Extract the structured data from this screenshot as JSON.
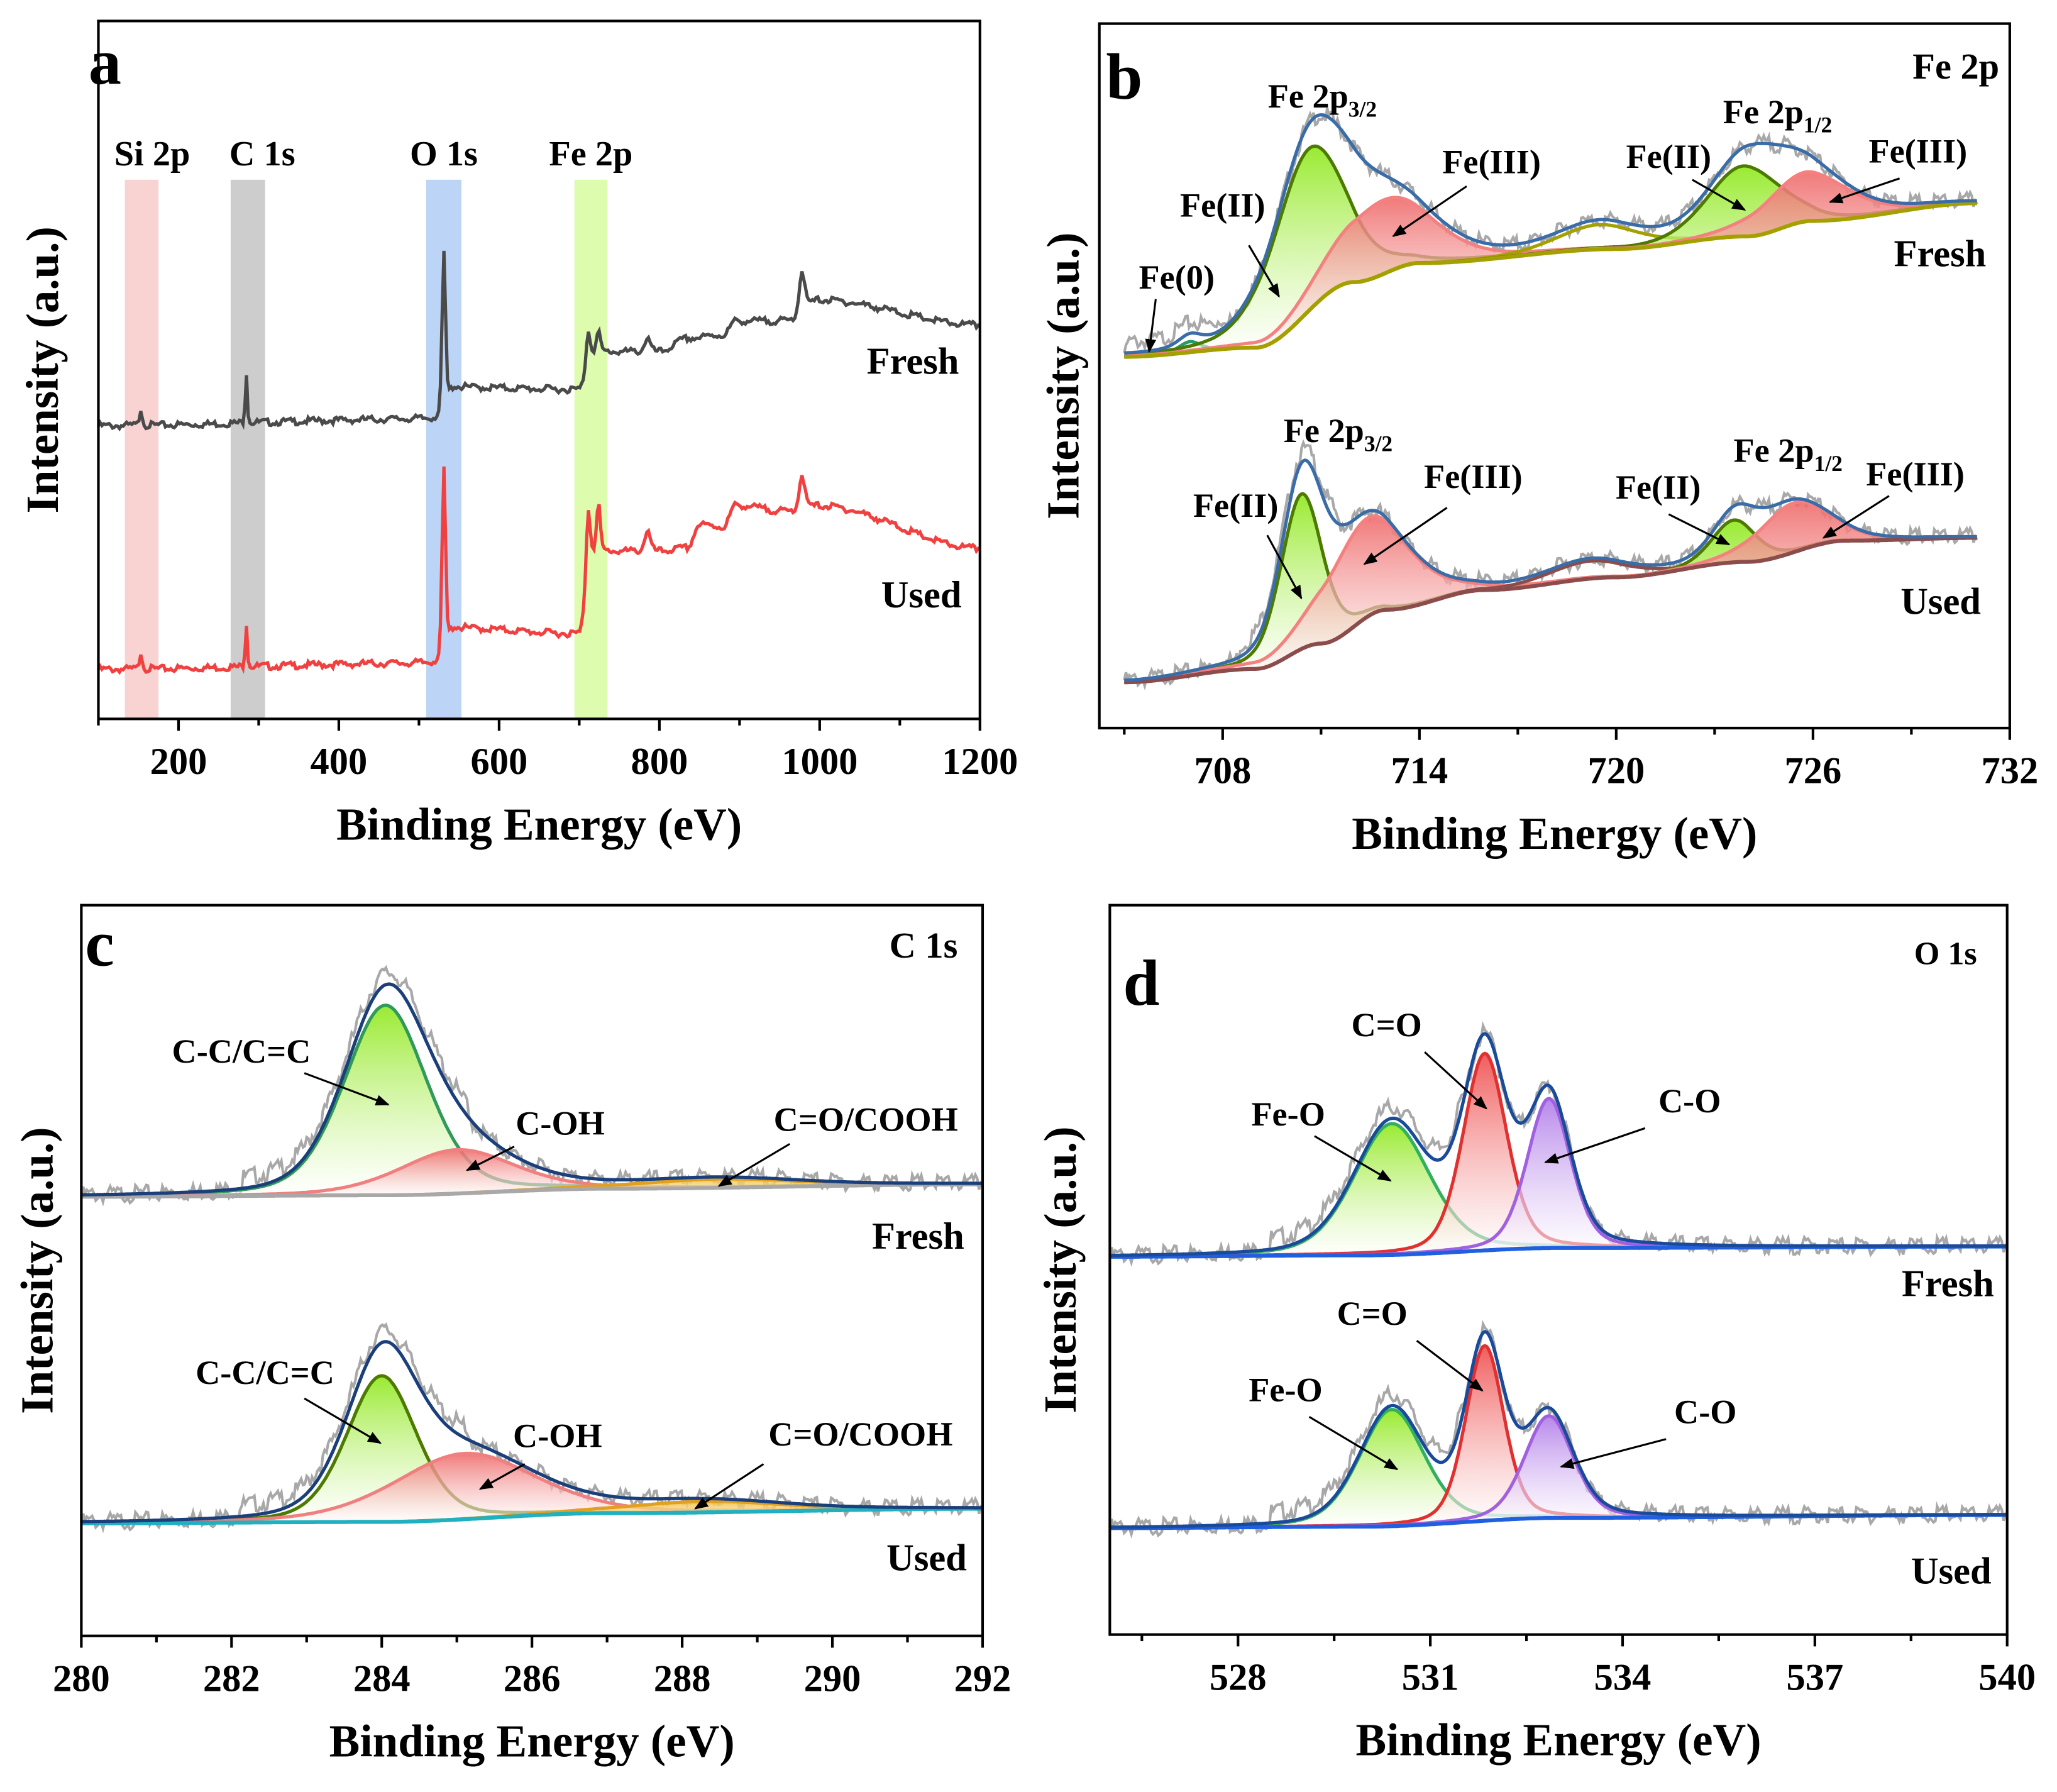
{
  "chart_data": [
    {
      "panel": "a",
      "type": "line",
      "xlabel": "Binding Energy (eV)",
      "ylabel": "Intensity (a.u.)",
      "xlim": [
        100,
        1200
      ],
      "ylim": [
        0,
        100
      ],
      "xticks": [
        200,
        400,
        600,
        800,
        1000,
        1200
      ],
      "grid": false,
      "bands": [
        {
          "label": "Si 2p",
          "range": [
            133,
            175
          ],
          "color": "#f8caca"
        },
        {
          "label": "C 1s",
          "range": [
            265,
            308
          ],
          "color": "#c4c4c4"
        },
        {
          "label": "O 1s",
          "range": [
            509,
            553
          ],
          "color": "#b0cdf3"
        },
        {
          "label": "Fe 2p",
          "range": [
            694,
            735
          ],
          "color": "#d8fca0"
        }
      ],
      "spectra": [
        {
          "name": "Fresh",
          "color": "#4a4a4a",
          "background": [
            [
              100,
              42
            ],
            [
              525,
              43
            ],
            [
              545,
              47.5
            ],
            [
              700,
              47.2
            ],
            [
              715,
              52.6
            ],
            [
              800,
              52.6
            ],
            [
              835,
              54.5
            ],
            [
              880,
              55
            ],
            [
              895,
              57
            ],
            [
              960,
              57
            ],
            [
              1000,
              60
            ],
            [
              1200,
              56.4
            ]
          ],
          "peaks": [
            [
              153,
              4,
              2.5
            ],
            [
              284.5,
              3,
              7.5
            ],
            [
              531,
              5,
              23
            ],
            [
              711,
              5,
              4
            ],
            [
              724,
              5,
              3
            ],
            [
              785,
              8,
              2
            ],
            [
              978,
              8,
              6
            ]
          ]
        },
        {
          "name": "Used",
          "color": "#f04040",
          "background": [
            [
              100,
              7.1
            ],
            [
              525,
              8
            ],
            [
              545,
              13
            ],
            [
              700,
              12.2
            ],
            [
              715,
              24
            ],
            [
              800,
              24
            ],
            [
              835,
              24.5
            ],
            [
              850,
              27.8
            ],
            [
              880,
              27.5
            ],
            [
              895,
              30.6
            ],
            [
              960,
              29.7
            ],
            [
              1000,
              30.5
            ],
            [
              1200,
              24.4
            ]
          ],
          "peaks": [
            [
              153,
              4,
              2.5
            ],
            [
              284.5,
              3,
              6.5
            ],
            [
              531,
              5,
              27
            ],
            [
              711,
              5,
              8
            ],
            [
              724,
              5,
              7
            ],
            [
              785,
              8,
              3
            ],
            [
              978,
              8,
              5
            ]
          ]
        }
      ]
    },
    {
      "panel": "b",
      "type": "line",
      "title": "Fe 2p",
      "xlabel": "Binding Energy (eV)",
      "ylabel": "Intensity (a.u.)",
      "xlim": [
        704.24,
        732
      ],
      "ylim": [
        0,
        100
      ],
      "xticks": [
        708,
        714,
        720,
        726,
        732
      ],
      "grid": false,
      "spectra": [
        {
          "name": "Fresh",
          "envelope_color": "#3a6ca8",
          "background_color": "#a3a000",
          "background": [
            [
              705,
              52.7
            ],
            [
              709,
              54
            ],
            [
              712,
              63.3
            ],
            [
              714,
              66
            ],
            [
              720,
              68
            ],
            [
              724,
              69.8
            ],
            [
              726,
              72
            ],
            [
              731,
              74.5
            ]
          ],
          "groups": [
            {
              "main": "Fe 2p",
              "sub": "3/2"
            },
            {
              "main": "Fe 2p",
              "sub": "1/2"
            }
          ],
          "components": [
            {
              "label": "Fe(0)",
              "center": 707.0,
              "fwhm": 0.8,
              "amp": 1.5,
              "color": "#3fbf8f",
              "line": "#2a9a6a"
            },
            {
              "label": "Fe(II)",
              "center": 710.6,
              "fwhm": 2.6,
              "amp": 23,
              "color": "#8ee81a",
              "line": "#4d7a00"
            },
            {
              "label": "Fe(III)",
              "center": 712.9,
              "fwhm": 3.5,
              "amp": 10.5,
              "color": "#ef6b6b",
              "line": "#f48080"
            },
            {
              "label": "",
              "center": 719.5,
              "fwhm": 3.0,
              "amp": 3.5,
              "color": "#b5b000",
              "line": "#a3a000"
            },
            {
              "label": "Fe(II)",
              "center": 723.9,
              "fwhm": 2.6,
              "amp": 10,
              "color": "#8ee81a",
              "line": "#4d7a00"
            },
            {
              "label": "Fe(III)",
              "center": 725.8,
              "fwhm": 3.0,
              "amp": 7,
              "color": "#ef6b6b",
              "line": "#f48080"
            }
          ]
        },
        {
          "name": "Used",
          "envelope_color": "#3a6ca8",
          "background_color": "#8b4c4c",
          "background": [
            [
              705,
              6.5
            ],
            [
              709,
              8.4
            ],
            [
              711,
              12
            ],
            [
              713,
              16.8
            ],
            [
              716,
              19.6
            ],
            [
              720,
              21.4
            ],
            [
              724,
              23.6
            ],
            [
              727,
              26.6
            ],
            [
              731,
              27
            ]
          ],
          "groups": [
            {
              "main": "Fe 2p",
              "sub": "3/2"
            },
            {
              "main": "Fe 2p",
              "sub": "1/2"
            }
          ],
          "components": [
            {
              "label": "Fe(II)",
              "center": 710.4,
              "fwhm": 1.5,
              "amp": 22,
              "color": "#8ee81a",
              "line": "#4d7a00"
            },
            {
              "label": "Fe(III)",
              "center": 712.4,
              "fwhm": 3.0,
              "amp": 14,
              "color": "#ef6b6b",
              "line": "#f48080"
            },
            {
              "label": "",
              "center": 719.2,
              "fwhm": 3.0,
              "amp": 2.5,
              "color": "#9a5a5a",
              "line": "#8b4c4c"
            },
            {
              "label": "Fe(II)",
              "center": 723.6,
              "fwhm": 1.6,
              "amp": 6,
              "color": "#8ee81a",
              "line": "#4d7a00"
            },
            {
              "label": "Fe(III)",
              "center": 725.4,
              "fwhm": 2.5,
              "amp": 7,
              "color": "#ef6b6b",
              "line": "#f48080"
            }
          ]
        }
      ]
    },
    {
      "panel": "c",
      "type": "line",
      "title": "C 1s",
      "xlabel": "Binding Energy (eV)",
      "ylabel": "Intensity (a.u.)",
      "xlim": [
        280,
        292
      ],
      "ylim": [
        0,
        100
      ],
      "xticks": [
        280,
        282,
        284,
        286,
        288,
        290,
        292
      ],
      "grid": false,
      "spectra": [
        {
          "name": "Fresh",
          "envelope_color": "#1a3f7a",
          "background_color": "#a8a8a8",
          "background": [
            [
              280,
              60.1
            ],
            [
              284,
              60.3
            ],
            [
              287,
              61.2
            ],
            [
              292,
              61.8
            ]
          ],
          "components": [
            {
              "label": "C-C/C=C",
              "center": 284.05,
              "fwhm": 1.3,
              "amp": 26,
              "color": "#8ee81a",
              "line": "#2f9a5a"
            },
            {
              "label": "C-OH",
              "center": 285.0,
              "fwhm": 1.8,
              "amp": 6,
              "color": "#ef6b6b",
              "line": "#f08080"
            },
            {
              "label": "C=O/COOH",
              "center": 288.5,
              "fwhm": 2.5,
              "amp": 1.2,
              "color": "#f0c040",
              "line": "#e0a020"
            }
          ]
        },
        {
          "name": "Used",
          "envelope_color": "#1a3f7a",
          "background_color": "#20b0c0",
          "background": [
            [
              280,
              15.4
            ],
            [
              284,
              15.6
            ],
            [
              287,
              16.8
            ],
            [
              292,
              17.4
            ]
          ],
          "components": [
            {
              "label": "C-C/C=C",
              "center": 284.0,
              "fwhm": 1.1,
              "amp": 20,
              "color": "#8ee81a",
              "line": "#4d7a00"
            },
            {
              "label": "C-OH",
              "center": 285.1,
              "fwhm": 2.2,
              "amp": 9,
              "color": "#ef6b6b",
              "line": "#f08080"
            },
            {
              "label": "C=O/COOH",
              "center": 288.3,
              "fwhm": 2.5,
              "amp": 1.5,
              "color": "#f0c040",
              "line": "#e0a020"
            }
          ]
        }
      ]
    },
    {
      "panel": "d",
      "type": "line",
      "title": "O 1s",
      "xlabel": "Binding Energy (eV)",
      "ylabel": "Intensity (a.u.)",
      "xlim": [
        526,
        540
      ],
      "ylim": [
        0,
        100
      ],
      "xticks": [
        528,
        531,
        534,
        537,
        540
      ],
      "grid": false,
      "spectra": [
        {
          "name": "Fresh",
          "envelope_color": "#1a4a9a",
          "background_color": "#2060e0",
          "background": [
            [
              526,
              51.8
            ],
            [
              530,
              52
            ],
            [
              533,
              53
            ],
            [
              540,
              53.2
            ]
          ],
          "components": [
            {
              "label": "Fe-O",
              "center": 530.4,
              "fwhm": 1.4,
              "amp": 18,
              "color": "#8ee81a",
              "line": "#30b060"
            },
            {
              "label": "C=O",
              "center": 531.85,
              "fwhm": 0.8,
              "amp": 27,
              "color": "#ef4b4b",
              "line": "#e03030"
            },
            {
              "label": "C-O",
              "center": 532.85,
              "fwhm": 0.8,
              "amp": 20.5,
              "color": "#b07ae8",
              "line": "#a060e0"
            }
          ]
        },
        {
          "name": "Used",
          "envelope_color": "#1a4a9a",
          "background_color": "#2060e0",
          "background": [
            [
              526,
              14.6
            ],
            [
              530,
              14.8
            ],
            [
              533,
              16
            ],
            [
              540,
              16.4
            ]
          ],
          "components": [
            {
              "label": "Fe-O",
              "center": 530.4,
              "fwhm": 1.2,
              "amp": 16,
              "color": "#8ee81a",
              "line": "#30b060"
            },
            {
              "label": "C=O",
              "center": 531.85,
              "fwhm": 0.7,
              "amp": 24,
              "color": "#ef4b4b",
              "line": "#e03030"
            },
            {
              "label": "C-O",
              "center": 532.85,
              "fwhm": 0.9,
              "amp": 14,
              "color": "#b07ae8",
              "line": "#a060e0"
            }
          ]
        }
      ]
    }
  ]
}
